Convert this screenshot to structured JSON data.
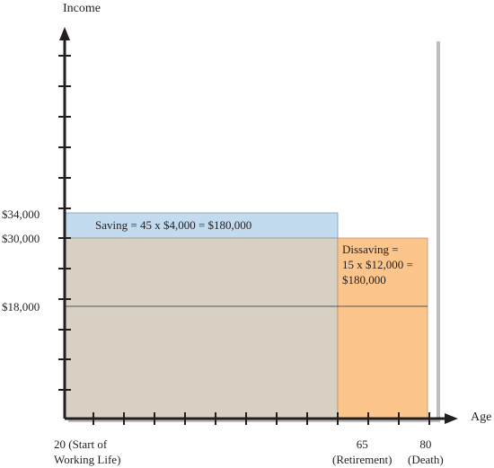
{
  "axes": {
    "y_title": "Income",
    "x_title": "Age"
  },
  "y_ticks": {
    "high": "$34,000",
    "mid": "$30,000",
    "low": "$18,000"
  },
  "x_ticks": {
    "start": "20 (Start of\nWorking Life)",
    "retire": "65\n(Retirement)",
    "death": "80\n(Death)"
  },
  "annotations": {
    "saving": "Saving = 45 x $4,000 = $180,000",
    "dissaving": "Dissaving =\n15 x  $12,000 =\n$180,000"
  },
  "colors": {
    "saving_fill": "#c2dbee",
    "consumption_fill": "#d8d0c2",
    "dissaving_fill": "#fbc58b",
    "axis": "#231f20"
  }
}
